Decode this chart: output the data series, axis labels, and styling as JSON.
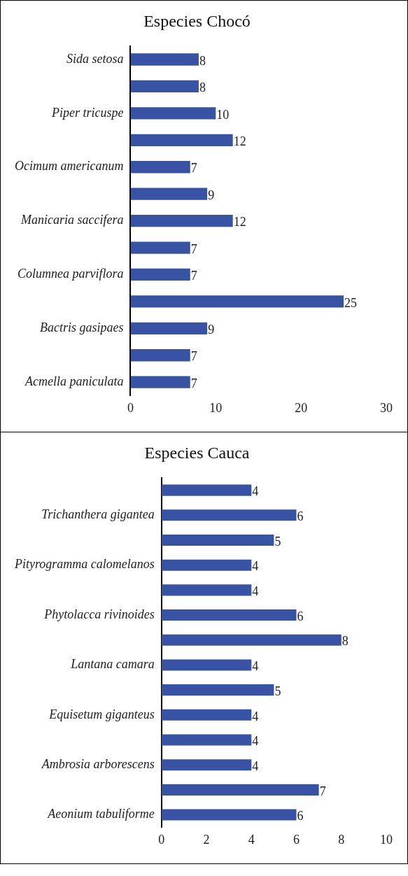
{
  "chart_data": [
    {
      "type": "bar",
      "orientation": "horizontal",
      "title": "Especies Chocó",
      "categories": [
        "Sida setosa",
        null,
        "Piper tricuspe",
        null,
        "Ocimum americanum",
        null,
        "Manicaria saccifera",
        null,
        "Columnea parviflora",
        null,
        "Bactris gasipaes",
        null,
        "Acmella paniculata"
      ],
      "values": [
        8,
        8,
        10,
        12,
        7,
        9,
        12,
        7,
        7,
        25,
        9,
        7,
        7
      ],
      "color": "#3953a4",
      "xlim": [
        0,
        30
      ],
      "xticks": [
        0,
        10,
        20,
        30
      ],
      "grid": false,
      "legend": false,
      "data_labels": true
    },
    {
      "type": "bar",
      "orientation": "horizontal",
      "title": "Especies Cauca",
      "categories": [
        null,
        "Trichanthera gigantea",
        null,
        "Pityrogramma calomelanos",
        null,
        "Phytolacca rivinoides",
        null,
        "Lantana camara",
        null,
        "Equisetum giganteus",
        null,
        "Ambrosia arborescens",
        null,
        "Aeonium tabuliforme"
      ],
      "values": [
        4,
        6,
        5,
        4,
        4,
        6,
        8,
        4,
        5,
        4,
        4,
        4,
        7,
        6
      ],
      "color": "#3953a4",
      "xlim": [
        0,
        10
      ],
      "xticks": [
        0,
        2,
        4,
        6,
        8,
        10
      ],
      "grid": false,
      "legend": false,
      "data_labels": true
    }
  ]
}
